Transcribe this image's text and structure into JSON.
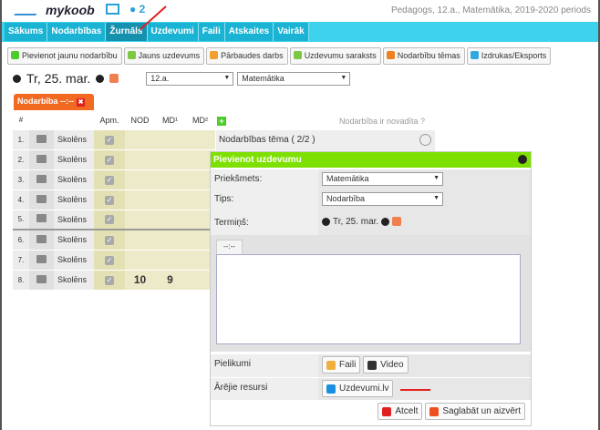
{
  "header": {
    "logo": "mykoob",
    "user_count": "2",
    "context": "Pedagogs, 12.a., Matemātika, 2019-2020 periods"
  },
  "nav": {
    "tabs": [
      "Sākums",
      "Nodarbības",
      "Žurnāls",
      "Uzdevumi",
      "Faili",
      "Atskaites",
      "Vairāk"
    ],
    "active": "Žurnāls"
  },
  "toolbar": {
    "buttons": [
      {
        "label": "Pievienot jaunu nodarbību",
        "icon": "plus-icon",
        "color": "#4ccc2a"
      },
      {
        "label": "Jauns uzdevums",
        "icon": "grid-icon",
        "color": "#7cc840"
      },
      {
        "label": "Pārbaudes darbs",
        "icon": "test-icon",
        "color": "#f0a030"
      },
      {
        "label": "Uzdevumu saraksts",
        "icon": "list-icon",
        "color": "#7cc840"
      },
      {
        "label": "Nodarbību tēmas",
        "icon": "edit-icon",
        "color": "#f08020"
      },
      {
        "label": "Izdrukas/Eksports",
        "icon": "print-icon",
        "color": "#30a8e0"
      }
    ]
  },
  "date_nav": {
    "date": "Tr, 25. mar.",
    "class": "12.a.",
    "subject": "Matemātika"
  },
  "lesson": {
    "tab": "Nodarbība --:--",
    "columns": [
      "#",
      "",
      "",
      "Apm.",
      "NOD",
      "MD¹",
      "MD²"
    ],
    "rows": [
      {
        "n": "1.",
        "name": "Skolēns",
        "nod": "",
        "md1": ""
      },
      {
        "n": "2.",
        "name": "Skolēns",
        "nod": "",
        "md1": ""
      },
      {
        "n": "3.",
        "name": "Skolēns",
        "nod": "",
        "md1": ""
      },
      {
        "n": "4.",
        "name": "Skolēns",
        "nod": "",
        "md1": ""
      },
      {
        "n": "5.",
        "name": "Skolēns",
        "nod": "",
        "md1": ""
      },
      {
        "n": "6.",
        "name": "Skolēns",
        "nod": "",
        "md1": ""
      },
      {
        "n": "7.",
        "name": "Skolēns",
        "nod": "",
        "md1": ""
      },
      {
        "n": "8.",
        "name": "Skolēns",
        "nod": "10",
        "md1": "9"
      }
    ],
    "done": "Nodarbība ir novadīta ?",
    "topic": "Nodarbības tēma ( 2/2 )"
  },
  "dialog": {
    "title": "Pievienot uzdevumu",
    "subject_label": "Priekšmets:",
    "subject": "Matemātika",
    "type_label": "Tips:",
    "type": "Nodarbība",
    "deadline_label": "Termiņš:",
    "deadline": "Tr, 25. mar.",
    "editor_tab": "--:--",
    "attachments_label": "Pielikumi",
    "files": "Faili",
    "video": "Video",
    "external_label": "Ārējie resursi",
    "external": "Uzdevumi.lv",
    "cancel": "Atcelt",
    "save": "Saglabāt un aizvērt"
  },
  "accent": "#7ee000"
}
